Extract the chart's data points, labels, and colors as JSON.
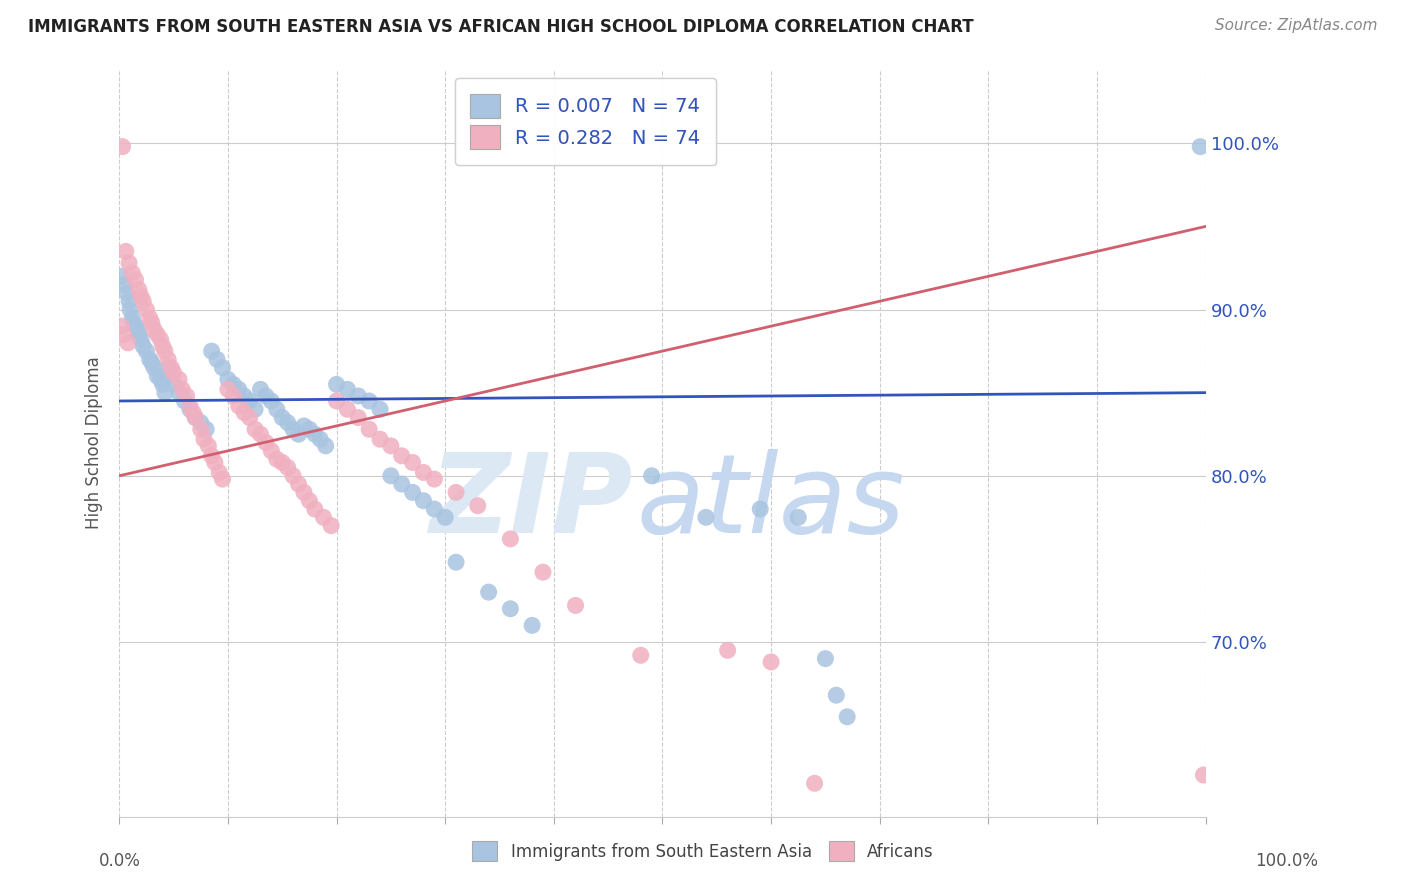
{
  "title": "IMMIGRANTS FROM SOUTH EASTERN ASIA VS AFRICAN HIGH SCHOOL DIPLOMA CORRELATION CHART",
  "source": "Source: ZipAtlas.com",
  "ylabel": "High School Diploma",
  "legend_bottom": [
    "Immigrants from South Eastern Asia",
    "Africans"
  ],
  "blue_color": "#a8c4e0",
  "pink_color": "#f0b0c0",
  "blue_line_color": "#3355bb",
  "pink_line_color": "#d06070",
  "blue_R": 0.007,
  "pink_R": 0.282,
  "N": 74,
  "xlim": [
    0.0,
    1.0
  ],
  "ylim": [
    0.595,
    1.045
  ],
  "blue_scatter_x": [
    0.002,
    0.005,
    0.007,
    0.009,
    0.01,
    0.012,
    0.013,
    0.015,
    0.017,
    0.018,
    0.02,
    0.022,
    0.025,
    0.028,
    0.03,
    0.032,
    0.035,
    0.038,
    0.04,
    0.042,
    0.045,
    0.048,
    0.05,
    0.055,
    0.06,
    0.065,
    0.07,
    0.075,
    0.08,
    0.085,
    0.09,
    0.095,
    0.1,
    0.105,
    0.11,
    0.115,
    0.12,
    0.125,
    0.13,
    0.135,
    0.14,
    0.145,
    0.15,
    0.155,
    0.16,
    0.165,
    0.17,
    0.175,
    0.18,
    0.185,
    0.19,
    0.2,
    0.21,
    0.22,
    0.23,
    0.24,
    0.25,
    0.26,
    0.27,
    0.28,
    0.29,
    0.3,
    0.31,
    0.34,
    0.36,
    0.38,
    0.49,
    0.54,
    0.59,
    0.625,
    0.65,
    0.66,
    0.67,
    0.995
  ],
  "blue_scatter_y": [
    0.92,
    0.915,
    0.91,
    0.905,
    0.9,
    0.895,
    0.892,
    0.89,
    0.888,
    0.885,
    0.882,
    0.878,
    0.875,
    0.87,
    0.868,
    0.865,
    0.86,
    0.858,
    0.855,
    0.85,
    0.865,
    0.86,
    0.855,
    0.85,
    0.845,
    0.84,
    0.835,
    0.832,
    0.828,
    0.875,
    0.87,
    0.865,
    0.858,
    0.855,
    0.852,
    0.848,
    0.845,
    0.84,
    0.852,
    0.848,
    0.845,
    0.84,
    0.835,
    0.832,
    0.828,
    0.825,
    0.83,
    0.828,
    0.825,
    0.822,
    0.818,
    0.855,
    0.852,
    0.848,
    0.845,
    0.84,
    0.8,
    0.795,
    0.79,
    0.785,
    0.78,
    0.775,
    0.748,
    0.73,
    0.72,
    0.71,
    0.8,
    0.775,
    0.78,
    0.775,
    0.69,
    0.668,
    0.655,
    0.998
  ],
  "pink_scatter_x": [
    0.003,
    0.006,
    0.009,
    0.012,
    0.015,
    0.018,
    0.02,
    0.022,
    0.025,
    0.028,
    0.03,
    0.032,
    0.035,
    0.038,
    0.04,
    0.042,
    0.045,
    0.048,
    0.05,
    0.055,
    0.058,
    0.062,
    0.065,
    0.068,
    0.07,
    0.075,
    0.078,
    0.082,
    0.085,
    0.088,
    0.092,
    0.095,
    0.1,
    0.105,
    0.11,
    0.115,
    0.12,
    0.125,
    0.13,
    0.135,
    0.14,
    0.145,
    0.15,
    0.155,
    0.16,
    0.165,
    0.17,
    0.175,
    0.18,
    0.188,
    0.195,
    0.2,
    0.21,
    0.22,
    0.23,
    0.24,
    0.25,
    0.26,
    0.27,
    0.28,
    0.29,
    0.31,
    0.33,
    0.36,
    0.39,
    0.42,
    0.48,
    0.56,
    0.6,
    0.64,
    0.002,
    0.004,
    0.008,
    0.998
  ],
  "pink_scatter_y": [
    0.998,
    0.935,
    0.928,
    0.922,
    0.918,
    0.912,
    0.908,
    0.905,
    0.9,
    0.895,
    0.892,
    0.888,
    0.885,
    0.882,
    0.878,
    0.875,
    0.87,
    0.865,
    0.862,
    0.858,
    0.852,
    0.848,
    0.842,
    0.838,
    0.835,
    0.828,
    0.822,
    0.818,
    0.812,
    0.808,
    0.802,
    0.798,
    0.852,
    0.848,
    0.842,
    0.838,
    0.835,
    0.828,
    0.825,
    0.82,
    0.815,
    0.81,
    0.808,
    0.805,
    0.8,
    0.795,
    0.79,
    0.785,
    0.78,
    0.775,
    0.77,
    0.845,
    0.84,
    0.835,
    0.828,
    0.822,
    0.818,
    0.812,
    0.808,
    0.802,
    0.798,
    0.79,
    0.782,
    0.762,
    0.742,
    0.722,
    0.692,
    0.695,
    0.688,
    0.615,
    0.89,
    0.885,
    0.88,
    0.62
  ],
  "blue_line_x0": 0.0,
  "blue_line_x1": 1.0,
  "blue_line_y0": 0.845,
  "blue_line_y1": 0.85,
  "pink_line_x0": 0.0,
  "pink_line_x1": 1.0,
  "pink_line_y0": 0.8,
  "pink_line_y1": 0.95
}
